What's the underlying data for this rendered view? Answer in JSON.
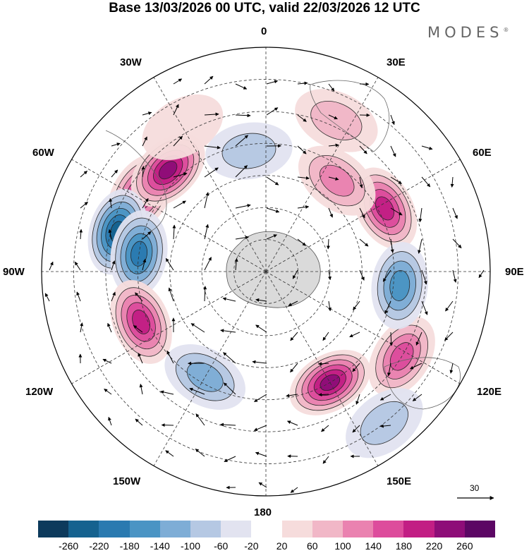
{
  "title": "Base 13/03/2026 00 UTC, valid 22/03/2026 12 UTC",
  "brand": "MODES",
  "brand_mark": "®",
  "longitude_labels": {
    "top": "0",
    "bottom": "180",
    "left": "90W",
    "right": "90E",
    "upper_left": "30W",
    "upper_right": "30E",
    "left_upper": "60W",
    "right_upper": "60E",
    "left_lower": "120W",
    "right_lower": "120E",
    "lower_left": "150W",
    "lower_right": "150E"
  },
  "reference_vector": "30",
  "colorbar": {
    "ticks": [
      "-260",
      "-220",
      "-180",
      "-140",
      "-100",
      "-60",
      "-20",
      "20",
      "60",
      "100",
      "140",
      "180",
      "220",
      "260"
    ],
    "colors": [
      "#0d3a5c",
      "#15628f",
      "#2a7ab0",
      "#4a94c4",
      "#7eadd6",
      "#b5c8e3",
      "#e2e3f0",
      "#ffffff",
      "#f6dcdc",
      "#f1b7c7",
      "#ea82b0",
      "#dd4c9c",
      "#c21e84",
      "#8e0d78",
      "#5c0764"
    ]
  },
  "anomalies": [
    {
      "lon": -58,
      "lat": -44,
      "value": 200
    },
    {
      "lon": -44,
      "lat": -46,
      "value": 230
    },
    {
      "lon": -75,
      "lat": -42,
      "value": -240
    },
    {
      "lon": -82,
      "lat": -50,
      "value": -200
    },
    {
      "lon": -112,
      "lat": -48,
      "value": 200
    },
    {
      "lon": -150,
      "lat": -52,
      "value": -130
    },
    {
      "lon": 150,
      "lat": -50,
      "value": 220
    },
    {
      "lon": 122,
      "lat": -40,
      "value": 160
    },
    {
      "lon": 62,
      "lat": -48,
      "value": 190
    },
    {
      "lon": 38,
      "lat": -54,
      "value": 120
    },
    {
      "lon": 96,
      "lat": -48,
      "value": -150
    },
    {
      "lon": 142,
      "lat": -30,
      "value": -90
    },
    {
      "lon": -8,
      "lat": -52,
      "value": -90
    },
    {
      "lon": 25,
      "lat": -38,
      "value": 60
    },
    {
      "lon": -30,
      "lat": -38,
      "value": 50
    }
  ]
}
